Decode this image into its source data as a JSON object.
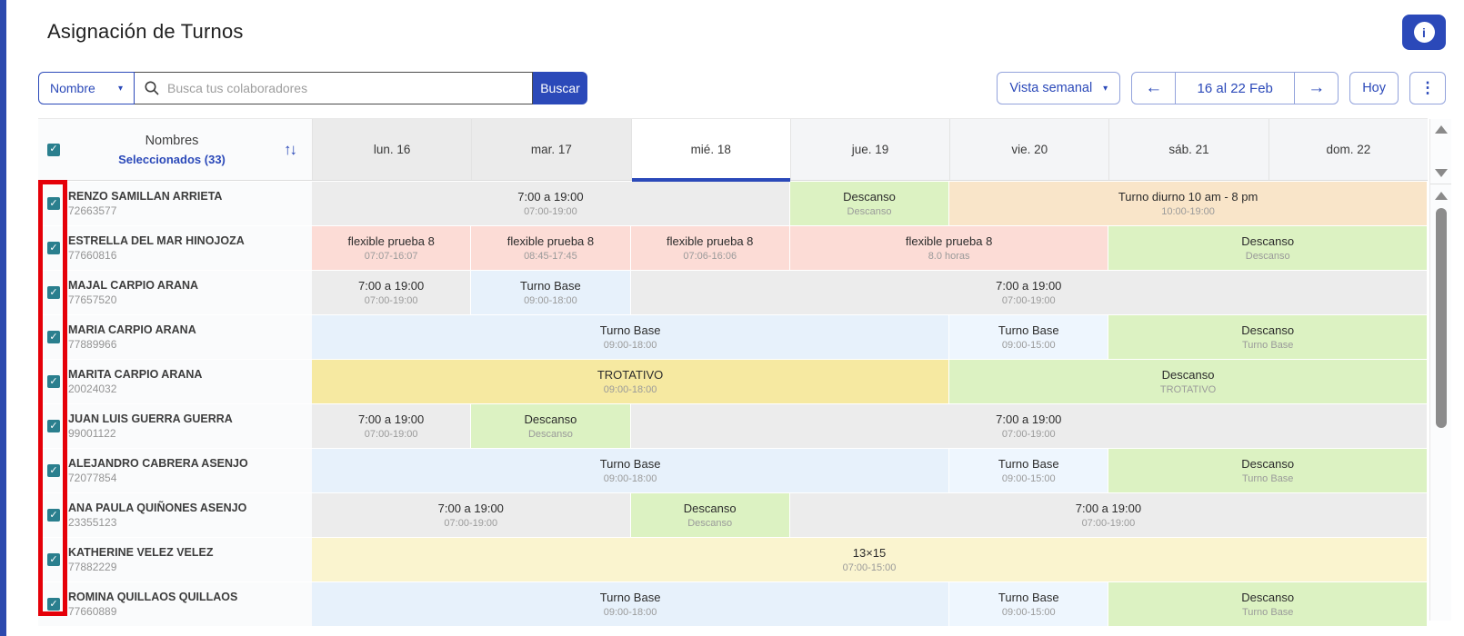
{
  "page": {
    "title": "Asignación de Turnos"
  },
  "icons": {
    "caret": "▾",
    "arrow_left": "←",
    "arrow_right": "→",
    "kebab": "⋮",
    "info": "i",
    "check": "✓",
    "sort_asc": "↑",
    "sort_desc": "↓"
  },
  "toolbar": {
    "filter_selected": "Nombre",
    "search_placeholder": "Busca tus colaboradores",
    "search_value": "",
    "search_button": "Buscar",
    "view_selected": "Vista semanal",
    "date_range": "16 al 22 Feb",
    "today_button": "Hoy"
  },
  "table": {
    "names_header": "Nombres",
    "selected_label": "Seleccionados (33)",
    "days": [
      {
        "label": "lun. 16",
        "state": "past"
      },
      {
        "label": "mar. 17",
        "state": "past"
      },
      {
        "label": "mié. 18",
        "state": "today"
      },
      {
        "label": "jue. 19",
        "state": "future"
      },
      {
        "label": "vie. 20",
        "state": "future"
      },
      {
        "label": "sáb. 21",
        "state": "future"
      },
      {
        "label": "dom. 22",
        "state": "future"
      }
    ]
  },
  "colors": {
    "primary_blue": "#2b49b9",
    "checkbox_teal": "#2a7f8e",
    "annotation_red": "#e50009",
    "gray": "#ececec",
    "green": "#dcf2c2",
    "peach": "#f9e5c9",
    "pink": "#fcdcd6",
    "blue": "#e7f1fb",
    "blue2": "#eef6fe",
    "yellow": "#f6e9a1",
    "cream": "#faf4cf"
  },
  "rows": [
    {
      "name": "RENZO SAMILLAN ARRIETA",
      "id": "72663577",
      "checked": true,
      "cells": [
        {
          "span": 3,
          "title": "7:00 a 19:00",
          "subtitle": "07:00-19:00",
          "type": "gray"
        },
        {
          "span": 1,
          "title": "Descanso",
          "subtitle": "Descanso",
          "type": "green"
        },
        {
          "span": 3,
          "title": "Turno diurno 10 am - 8 pm",
          "subtitle": "10:00-19:00",
          "type": "peach"
        }
      ]
    },
    {
      "name": "ESTRELLA DEL MAR HINOJOZA",
      "id": "77660816",
      "checked": true,
      "cells": [
        {
          "span": 1,
          "title": "flexible prueba 8",
          "subtitle": "07:07-16:07",
          "type": "pink"
        },
        {
          "span": 1,
          "title": "flexible prueba 8",
          "subtitle": "08:45-17:45",
          "type": "pink"
        },
        {
          "span": 1,
          "title": "flexible prueba 8",
          "subtitle": "07:06-16:06",
          "type": "pink"
        },
        {
          "span": 2,
          "title": "flexible prueba 8",
          "subtitle": "8.0 horas",
          "type": "pink"
        },
        {
          "span": 2,
          "title": "Descanso",
          "subtitle": "Descanso",
          "type": "green"
        }
      ]
    },
    {
      "name": "MAJAL CARPIO ARANA",
      "id": "77657520",
      "checked": true,
      "cells": [
        {
          "span": 1,
          "title": "7:00 a 19:00",
          "subtitle": "07:00-19:00",
          "type": "gray"
        },
        {
          "span": 1,
          "title": "Turno Base",
          "subtitle": "09:00-18:00",
          "type": "blue"
        },
        {
          "span": 5,
          "title": "7:00 a 19:00",
          "subtitle": "07:00-19:00",
          "type": "gray"
        }
      ]
    },
    {
      "name": "MARIA CARPIO ARANA",
      "id": "77889966",
      "checked": true,
      "cells": [
        {
          "span": 4,
          "title": "Turno Base",
          "subtitle": "09:00-18:00",
          "type": "blue"
        },
        {
          "span": 1,
          "title": "Turno Base",
          "subtitle": "09:00-15:00",
          "type": "blue2"
        },
        {
          "span": 2,
          "title": "Descanso",
          "subtitle": "Turno Base",
          "type": "green"
        }
      ]
    },
    {
      "name": "MARITA CARPIO ARANA",
      "id": "20024032",
      "checked": true,
      "cells": [
        {
          "span": 4,
          "title": "TROTATIVO",
          "subtitle": "09:00-18:00",
          "type": "yellow"
        },
        {
          "span": 3,
          "title": "Descanso",
          "subtitle": "TROTATIVO",
          "type": "green"
        }
      ]
    },
    {
      "name": "JUAN LUIS GUERRA GUERRA",
      "id": "99001122",
      "checked": true,
      "cells": [
        {
          "span": 1,
          "title": "7:00 a 19:00",
          "subtitle": "07:00-19:00",
          "type": "gray"
        },
        {
          "span": 1,
          "title": "Descanso",
          "subtitle": "Descanso",
          "type": "green"
        },
        {
          "span": 5,
          "title": "7:00 a 19:00",
          "subtitle": "07:00-19:00",
          "type": "gray"
        }
      ]
    },
    {
      "name": "ALEJANDRO CABRERA ASENJO",
      "id": "72077854",
      "checked": true,
      "cells": [
        {
          "span": 4,
          "title": "Turno Base",
          "subtitle": "09:00-18:00",
          "type": "blue"
        },
        {
          "span": 1,
          "title": "Turno Base",
          "subtitle": "09:00-15:00",
          "type": "blue2"
        },
        {
          "span": 2,
          "title": "Descanso",
          "subtitle": "Turno Base",
          "type": "green"
        }
      ]
    },
    {
      "name": "ANA PAULA QUIÑONES ASENJO",
      "id": "23355123",
      "checked": true,
      "cells": [
        {
          "span": 2,
          "title": "7:00 a 19:00",
          "subtitle": "07:00-19:00",
          "type": "gray"
        },
        {
          "span": 1,
          "title": "Descanso",
          "subtitle": "Descanso",
          "type": "green"
        },
        {
          "span": 4,
          "title": "7:00 a 19:00",
          "subtitle": "07:00-19:00",
          "type": "gray"
        }
      ]
    },
    {
      "name": "KATHERINE VELEZ VELEZ",
      "id": "77882229",
      "checked": true,
      "cells": [
        {
          "span": 7,
          "title": "13×15",
          "subtitle": "07:00-15:00",
          "type": "cream"
        }
      ]
    },
    {
      "name": "ROMINA QUILLAOS QUILLAOS",
      "id": "77660889",
      "checked": true,
      "cells": [
        {
          "span": 4,
          "title": "Turno Base",
          "subtitle": "09:00-18:00",
          "type": "blue"
        },
        {
          "span": 1,
          "title": "Turno Base",
          "subtitle": "09:00-15:00",
          "type": "blue2"
        },
        {
          "span": 2,
          "title": "Descanso",
          "subtitle": "Turno Base",
          "type": "green"
        }
      ]
    }
  ]
}
